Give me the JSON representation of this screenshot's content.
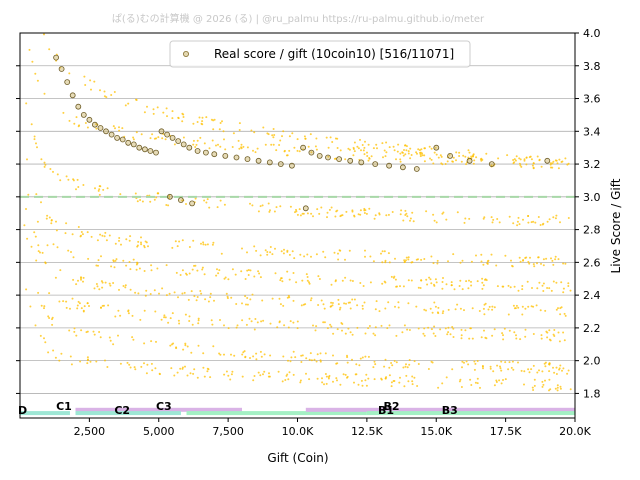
{
  "watermark": "ぱ(る)むの計算機 @ 2026 (る) | @ru_palmu  https://ru-palmu.github.io/meter",
  "chart_data": {
    "type": "scatter",
    "xlabel": "Gift (Coin)",
    "ylabel": "Live Score / Gift",
    "xlim": [
      0,
      20000
    ],
    "ylim": [
      1.65,
      4.0
    ],
    "x_ticks": [
      2500,
      5000,
      7500,
      10000,
      12500,
      15000,
      17500,
      20000
    ],
    "x_tick_labels": [
      "2,500",
      "5,000",
      "7,500",
      "10.0K",
      "12.5K",
      "15.0K",
      "17.5K",
      "20.0K"
    ],
    "y_ticks": [
      1.8,
      2.0,
      2.2,
      2.4,
      2.6,
      2.8,
      3.0,
      3.2,
      3.4,
      3.6,
      3.8,
      4.0
    ],
    "y_tick_labels": [
      "1.8",
      "2.0",
      "2.2",
      "2.4",
      "2.6",
      "2.8",
      "3.0",
      "3.2",
      "3.4",
      "3.6",
      "3.8",
      "4.0"
    ],
    "grid": "horizontal",
    "legend_position": "top-center",
    "reference_line": {
      "y": 3.0,
      "style": "dashed",
      "color": "#a8d8a8"
    },
    "series": [
      {
        "name": "Real score / gift (10coin10) [516/11071]",
        "marker": "circle-outline",
        "color": "#b8a040",
        "points": [
          [
            1300,
            3.85
          ],
          [
            1500,
            3.78
          ],
          [
            1700,
            3.7
          ],
          [
            1900,
            3.62
          ],
          [
            2100,
            3.55
          ],
          [
            2300,
            3.5
          ],
          [
            2500,
            3.47
          ],
          [
            2700,
            3.44
          ],
          [
            2900,
            3.42
          ],
          [
            3100,
            3.4
          ],
          [
            3300,
            3.38
          ],
          [
            3500,
            3.36
          ],
          [
            3700,
            3.35
          ],
          [
            3900,
            3.33
          ],
          [
            4100,
            3.32
          ],
          [
            4300,
            3.3
          ],
          [
            4500,
            3.29
          ],
          [
            4700,
            3.28
          ],
          [
            4900,
            3.27
          ],
          [
            5100,
            3.4
          ],
          [
            5300,
            3.38
          ],
          [
            5500,
            3.36
          ],
          [
            5700,
            3.34
          ],
          [
            5900,
            3.32
          ],
          [
            6100,
            3.3
          ],
          [
            6400,
            3.28
          ],
          [
            6700,
            3.27
          ],
          [
            7000,
            3.26
          ],
          [
            7400,
            3.25
          ],
          [
            7800,
            3.24
          ],
          [
            8200,
            3.23
          ],
          [
            8600,
            3.22
          ],
          [
            9000,
            3.21
          ],
          [
            9400,
            3.2
          ],
          [
            9800,
            3.19
          ],
          [
            10200,
            3.3
          ],
          [
            10500,
            3.27
          ],
          [
            10800,
            3.25
          ],
          [
            11100,
            3.24
          ],
          [
            11500,
            3.23
          ],
          [
            11900,
            3.22
          ],
          [
            12300,
            3.21
          ],
          [
            12800,
            3.2
          ],
          [
            13300,
            3.19
          ],
          [
            13800,
            3.18
          ],
          [
            14300,
            3.17
          ],
          [
            15000,
            3.3
          ],
          [
            15500,
            3.25
          ],
          [
            16200,
            3.22
          ],
          [
            17000,
            3.2
          ],
          [
            19000,
            3.22
          ],
          [
            5400,
            3.0
          ],
          [
            5800,
            2.98
          ],
          [
            6200,
            2.96
          ],
          [
            10300,
            2.93
          ]
        ]
      }
    ],
    "point_clouds": {
      "color": "#ffc000",
      "bands": [
        {
          "y_at_1000": 3.9,
          "y_at_20000": 3.2
        },
        {
          "y_at_1000": 3.55,
          "y_at_20000": 3.2
        },
        {
          "y_at_1000": 3.15,
          "y_at_20000": 2.85
        },
        {
          "y_at_1000": 2.85,
          "y_at_20000": 2.6
        },
        {
          "y_at_1000": 2.7,
          "y_at_20000": 2.45
        },
        {
          "y_at_1000": 2.55,
          "y_at_20000": 2.3
        },
        {
          "y_at_1000": 2.4,
          "y_at_20000": 2.15
        },
        {
          "y_at_1000": 2.25,
          "y_at_20000": 1.95
        },
        {
          "y_at_1000": 2.05,
          "y_at_20000": 1.85
        }
      ]
    },
    "rank_labels": [
      {
        "label": "D",
        "x": 0
      },
      {
        "label": "C1",
        "x": 1300
      },
      {
        "label": "C2",
        "x": 3400
      },
      {
        "label": "C3",
        "x": 4900
      },
      {
        "label": "B1",
        "x": 12900
      },
      {
        "label": "B2",
        "x": 13100
      },
      {
        "label": "B3",
        "x": 15200
      }
    ],
    "rank_bars": [
      {
        "x0": 0,
        "x1": 1800,
        "y": 1.68,
        "color": "#9ee7d5"
      },
      {
        "x0": 2000,
        "x1": 8000,
        "y": 1.7,
        "color": "#d9b3e6"
      },
      {
        "x0": 2000,
        "x1": 5800,
        "y": 1.68,
        "color": "#9ee7d5"
      },
      {
        "x0": 6000,
        "x1": 12500,
        "y": 1.68,
        "color": "#a4f0c4"
      },
      {
        "x0": 10300,
        "x1": 20000,
        "y": 1.7,
        "color": "#d9b3e6"
      },
      {
        "x0": 12500,
        "x1": 20000,
        "y": 1.68,
        "color": "#a4f0c4"
      }
    ]
  }
}
